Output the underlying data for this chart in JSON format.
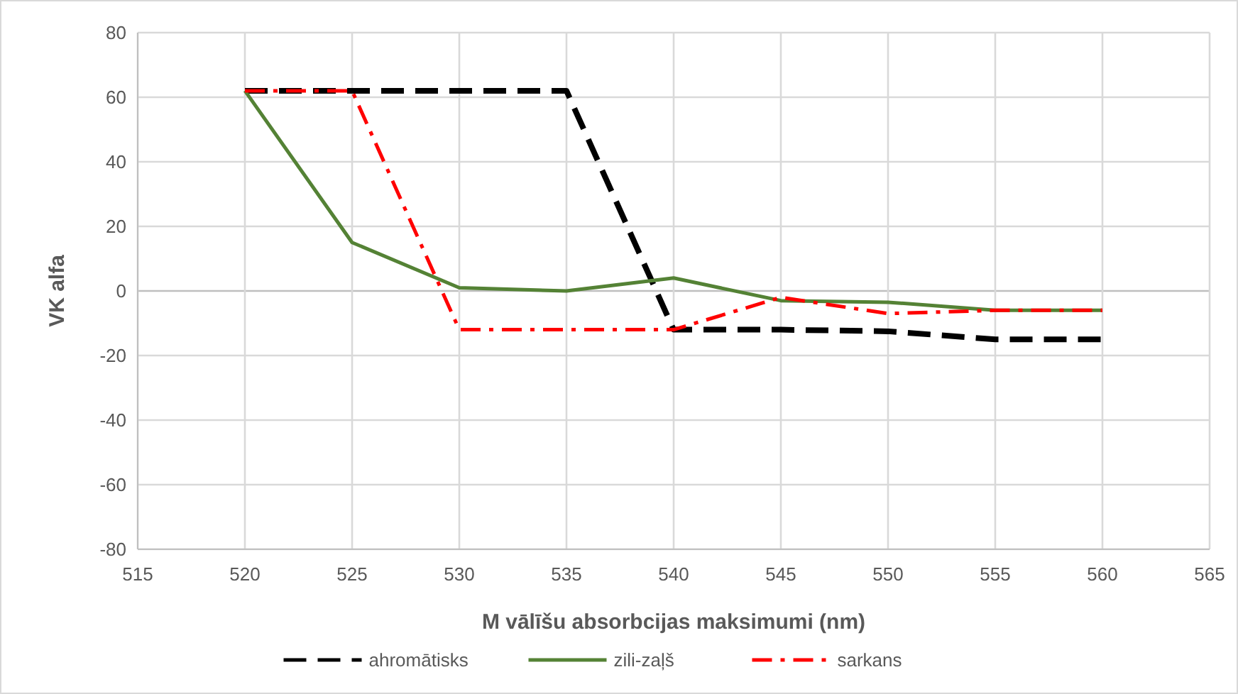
{
  "chart_data": {
    "type": "line",
    "xlabel": "M vālīšu absorbcijas maksimumi (nm)",
    "ylabel": "VK alfa",
    "x": [
      520,
      525,
      530,
      535,
      540,
      545,
      550,
      555,
      560
    ],
    "series": [
      {
        "name": "ahromātisks",
        "color": "#000000",
        "line_style": "dashed",
        "values": [
          62,
          62,
          62,
          62,
          -12,
          -12,
          -12.5,
          -15,
          -15
        ]
      },
      {
        "name": "zili-zaļš",
        "color": "#548235",
        "line_style": "solid",
        "values": [
          62,
          15,
          1,
          0,
          4,
          -3,
          -3.5,
          -6,
          -6
        ]
      },
      {
        "name": "sarkans",
        "color": "#ff0000",
        "line_style": "dashdot",
        "values": [
          62,
          62,
          -12,
          -12,
          -12,
          -2,
          -7,
          -6,
          -6
        ]
      }
    ],
    "xlim": [
      515,
      565
    ],
    "xticks": [
      515,
      520,
      525,
      530,
      535,
      540,
      545,
      550,
      555,
      560,
      565
    ],
    "ylim": [
      -80,
      80
    ],
    "yticks": [
      -80,
      -60,
      -40,
      -20,
      0,
      20,
      40,
      60,
      80
    ],
    "grid": true,
    "legend": "bottom",
    "marker": "none"
  }
}
